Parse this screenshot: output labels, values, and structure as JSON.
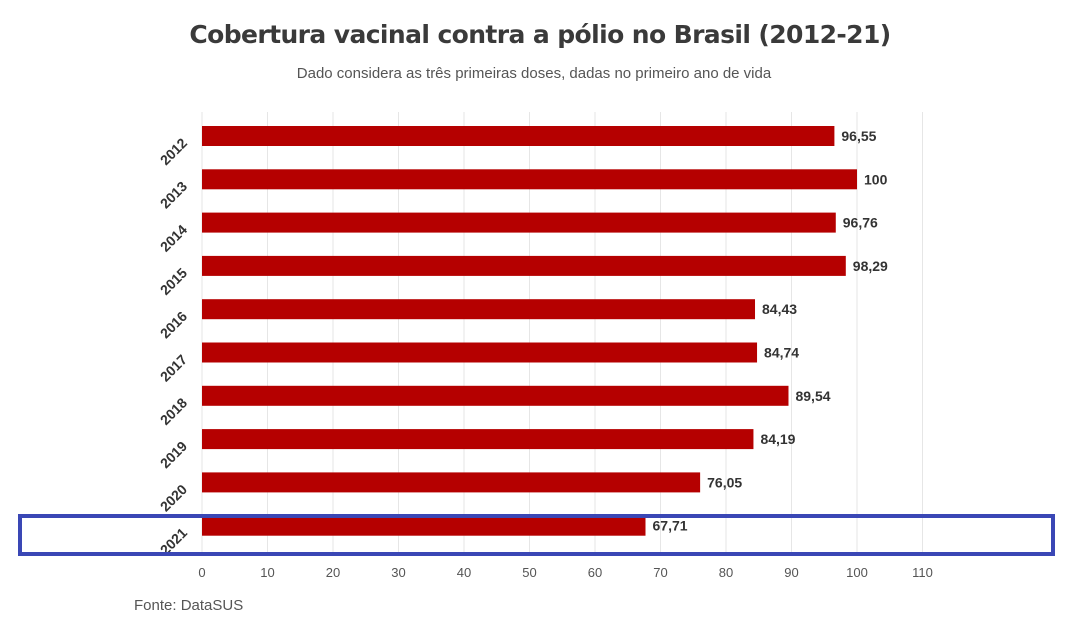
{
  "title": "Cobertura vacinal contra a pólio no Brasil (2012-21)",
  "subtitle": "Dado considera as três primeiras doses, dadas no primeiro ano de vida",
  "source": "Fonte: DataSUS",
  "colors": {
    "bar": "#b50000",
    "highlight_box": "#3a47b5",
    "grid": "#e6e6e6",
    "label": "#333333"
  },
  "chart_data": {
    "type": "bar",
    "orientation": "horizontal",
    "categories": [
      "2012",
      "2013",
      "2014",
      "2015",
      "2016",
      "2017",
      "2018",
      "2019",
      "2020",
      "2021"
    ],
    "values": [
      96.55,
      100,
      96.76,
      98.29,
      84.43,
      84.74,
      89.54,
      84.19,
      76.05,
      67.71
    ],
    "value_labels": [
      "96,55",
      "100",
      "96,76",
      "98,29",
      "84,43",
      "84,74",
      "89,54",
      "84,19",
      "76,05",
      "67,71"
    ],
    "xlim": [
      0,
      110
    ],
    "x_ticks": [
      0,
      10,
      20,
      30,
      40,
      50,
      60,
      70,
      80,
      90,
      100,
      110
    ],
    "grid": true,
    "highlighted_category": "2021",
    "title": "Cobertura vacinal contra a pólio no Brasil (2012-21)",
    "subtitle": "Dado considera as três primeiras doses, dadas no primeiro ano de vida"
  }
}
